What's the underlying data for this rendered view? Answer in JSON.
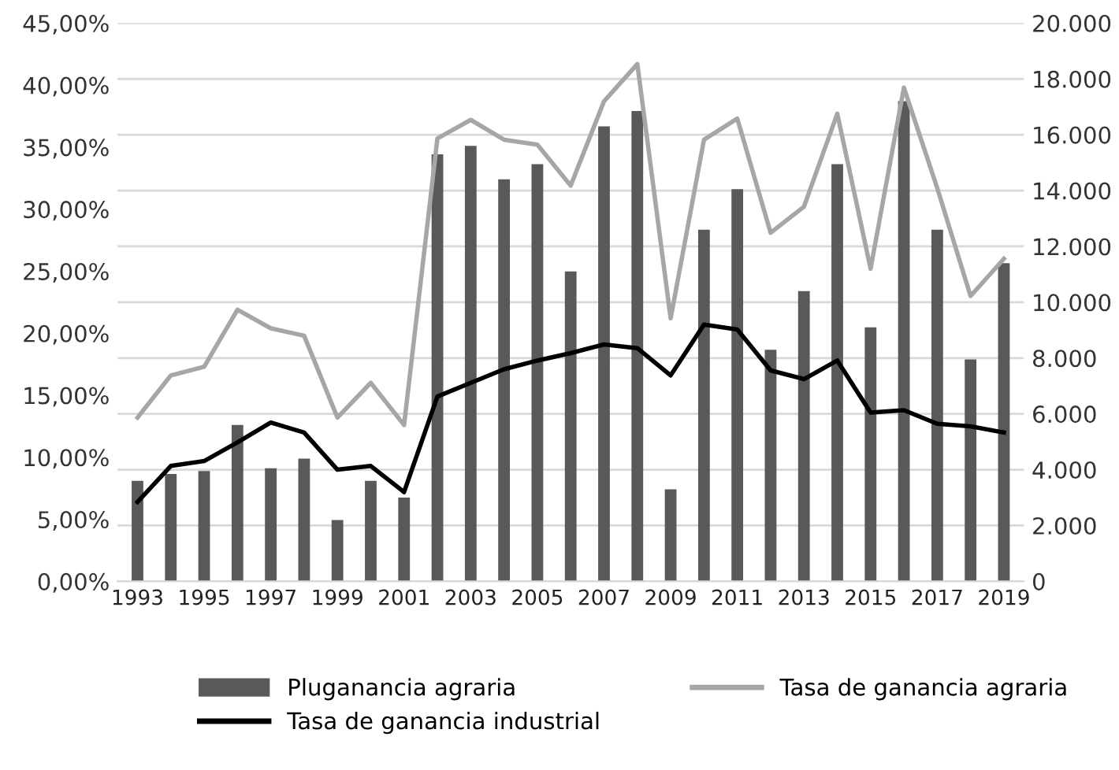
{
  "chart_data": {
    "type": "bar",
    "categories": [
      "1993",
      null,
      "1995",
      null,
      "1997",
      null,
      "1999",
      null,
      "2001",
      null,
      "2003",
      null,
      "2005",
      null,
      "2007",
      null,
      "2009",
      null,
      "2011",
      null,
      "2013",
      null,
      "2015",
      null,
      "2017",
      null,
      "2019"
    ],
    "series": [
      {
        "name": "Pluganancia agraria",
        "axis": "y2",
        "color": "#595959",
        "values": [
          3600,
          3850,
          3950,
          5600,
          4050,
          4400,
          2200,
          3600,
          3000,
          15300,
          15600,
          14400,
          14950,
          11100,
          16300,
          16850,
          3300,
          12600,
          14050,
          8300,
          10400,
          14950,
          9100,
          17200,
          12600,
          7950,
          11400
        ]
      },
      {
        "name": "Tasa de ganancia agraria",
        "type": "line",
        "axis": "y",
        "color": "#a6a6a6",
        "values": [
          13.2,
          16.6,
          17.3,
          21.9,
          20.4,
          19.8,
          13.2,
          16.0,
          12.6,
          35.7,
          37.2,
          35.6,
          35.2,
          31.9,
          38.7,
          41.7,
          21.2,
          35.6,
          37.3,
          28.1,
          30.2,
          37.7,
          25.2,
          39.8,
          31.7,
          23.0,
          26.0
        ]
      },
      {
        "name": "Tasa de ganancia industrial",
        "type": "line",
        "axis": "y",
        "color": "#000000",
        "values": [
          6.4,
          9.3,
          9.7,
          11.2,
          12.8,
          12.0,
          9.0,
          9.3,
          7.2,
          14.9,
          16.0,
          17.1,
          17.8,
          18.4,
          19.1,
          18.8,
          16.6,
          20.7,
          20.3,
          17.0,
          16.3,
          17.8,
          13.6,
          13.8,
          12.7,
          12.5,
          12.0
        ]
      }
    ],
    "ylim": [
      0,
      45
    ],
    "yticks": [
      {
        "value": 0,
        "label": "0,00%"
      },
      {
        "value": 5,
        "label": "5,00%"
      },
      {
        "value": 10,
        "label": "10,00%"
      },
      {
        "value": 15,
        "label": "15,00%"
      },
      {
        "value": 20,
        "label": "20,00%"
      },
      {
        "value": 25,
        "label": "25,00%"
      },
      {
        "value": 30,
        "label": "30,00%"
      },
      {
        "value": 35,
        "label": "35,00%"
      },
      {
        "value": 40,
        "label": "40,00%"
      },
      {
        "value": 45,
        "label": "45,00%"
      }
    ],
    "y2lim": [
      0,
      20000
    ],
    "y2ticks": [
      0,
      {
        "value": 2000,
        "label": "2.000"
      },
      {
        "value": 4000,
        "label": "4.000"
      },
      {
        "value": 6000,
        "label": "6.000"
      },
      {
        "value": 8000,
        "label": "8.000"
      },
      {
        "value": 10000,
        "label": "10.000"
      },
      {
        "value": 12000,
        "label": "12.000"
      },
      {
        "value": 14000,
        "label": "14.000"
      },
      {
        "value": 16000,
        "label": "16.000"
      },
      {
        "value": 18000,
        "label": "18.000"
      },
      {
        "value": 20000,
        "label": "20.000"
      }
    ],
    "grid": "y",
    "legend": "bottom",
    "marker": "none",
    "line_style": "solid"
  }
}
